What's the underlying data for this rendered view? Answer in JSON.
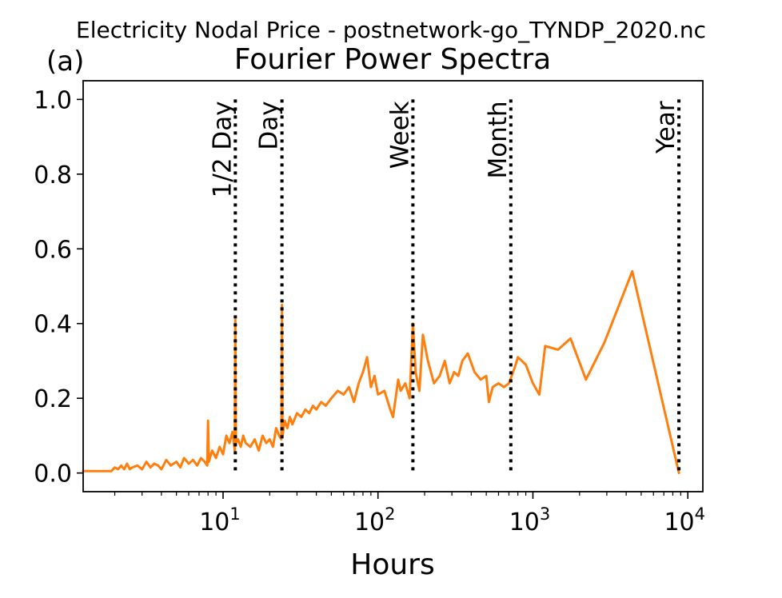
{
  "figure": {
    "suptitle": "Electricity Nodal Price - postnetwork-go_TYNDP_2020.nc",
    "panel_label": "(a)"
  },
  "chart_data": {
    "type": "line",
    "title": "Fourier Power Spectra",
    "xlabel": "Hours",
    "ylabel": "",
    "xscale": "log",
    "xlim": [
      1.25,
      12500
    ],
    "ylim": [
      -0.05,
      1.05
    ],
    "x_ticks": [
      {
        "value": 10,
        "label": "10^1"
      },
      {
        "value": 100,
        "label": "10^2"
      },
      {
        "value": 1000,
        "label": "10^3"
      },
      {
        "value": 10000,
        "label": "10^4"
      }
    ],
    "y_ticks": [
      {
        "value": 0.0,
        "label": "0.0"
      },
      {
        "value": 0.2,
        "label": "0.2"
      },
      {
        "value": 0.4,
        "label": "0.4"
      },
      {
        "value": 0.6,
        "label": "0.6"
      },
      {
        "value": 0.8,
        "label": "0.8"
      },
      {
        "value": 1.0,
        "label": "1.0"
      }
    ],
    "grid": false,
    "series": [
      {
        "color": "#ff7f0e",
        "x": [
          1.25,
          1.9,
          2.0,
          2.1,
          2.2,
          2.3,
          2.4,
          2.5,
          2.6,
          2.8,
          3.0,
          3.2,
          3.4,
          3.6,
          3.8,
          4.0,
          4.3,
          4.6,
          5.0,
          5.3,
          5.6,
          6.0,
          6.4,
          6.8,
          7.2,
          7.6,
          7.9,
          8.0,
          8.1,
          8.5,
          9.0,
          9.5,
          10.0,
          10.5,
          11.0,
          11.5,
          11.9,
          12.0,
          12.1,
          12.5,
          13.0,
          13.5,
          14.0,
          15.0,
          16.0,
          17.0,
          18.0,
          19.0,
          20.0,
          21.0,
          22.0,
          23.0,
          23.8,
          24.0,
          24.2,
          25.0,
          26.0,
          27.0,
          28.0,
          30.0,
          32.0,
          34.0,
          36.0,
          38.0,
          40.0,
          43.0,
          46.0,
          50.0,
          55.0,
          60.0,
          65.0,
          70.0,
          75.0,
          80.0,
          85.0,
          90.0,
          95.0,
          100.0,
          110.0,
          120.0,
          125.0,
          130.0,
          135.0,
          140.0,
          150.0,
          160.0,
          168.0,
          175.0,
          185.0,
          195.0,
          210.0,
          230.0,
          250.0,
          270.0,
          290.0,
          310.0,
          330.0,
          350.0,
          380.0,
          420.0,
          460.0,
          500.0,
          520.0,
          550.0,
          600.0,
          650.0,
          700.0,
          760.0,
          800.0,
          900.0,
          1000.0,
          1100.0,
          1200.0,
          1450.0,
          1750.0,
          2200.0,
          2900.0,
          4380.0,
          8760.0
        ],
        "y": [
          0.005,
          0.005,
          0.015,
          0.01,
          0.02,
          0.01,
          0.025,
          0.01,
          0.015,
          0.02,
          0.01,
          0.03,
          0.015,
          0.025,
          0.02,
          0.01,
          0.035,
          0.02,
          0.03,
          0.015,
          0.04,
          0.025,
          0.035,
          0.02,
          0.04,
          0.03,
          0.02,
          0.14,
          0.03,
          0.06,
          0.04,
          0.07,
          0.05,
          0.1,
          0.08,
          0.11,
          0.06,
          0.41,
          0.08,
          0.09,
          0.07,
          0.1,
          0.08,
          0.07,
          0.09,
          0.06,
          0.1,
          0.08,
          0.09,
          0.07,
          0.12,
          0.1,
          0.09,
          0.45,
          0.1,
          0.14,
          0.12,
          0.15,
          0.13,
          0.16,
          0.15,
          0.17,
          0.16,
          0.18,
          0.17,
          0.19,
          0.18,
          0.2,
          0.22,
          0.21,
          0.23,
          0.19,
          0.24,
          0.27,
          0.31,
          0.23,
          0.26,
          0.21,
          0.22,
          0.17,
          0.15,
          0.2,
          0.25,
          0.22,
          0.24,
          0.2,
          0.4,
          0.27,
          0.22,
          0.37,
          0.3,
          0.24,
          0.26,
          0.3,
          0.24,
          0.27,
          0.26,
          0.3,
          0.32,
          0.27,
          0.25,
          0.26,
          0.19,
          0.23,
          0.24,
          0.23,
          0.24,
          0.28,
          0.31,
          0.29,
          0.24,
          0.21,
          0.34,
          0.33,
          0.36,
          0.25,
          0.35,
          0.54,
          0.0
        ]
      }
    ],
    "annotations": [
      {
        "x": 12,
        "label": "1/2 Day"
      },
      {
        "x": 24,
        "label": "Day"
      },
      {
        "x": 168,
        "label": "Week"
      },
      {
        "x": 720,
        "label": "Month"
      },
      {
        "x": 8760,
        "label": "Year"
      }
    ]
  }
}
